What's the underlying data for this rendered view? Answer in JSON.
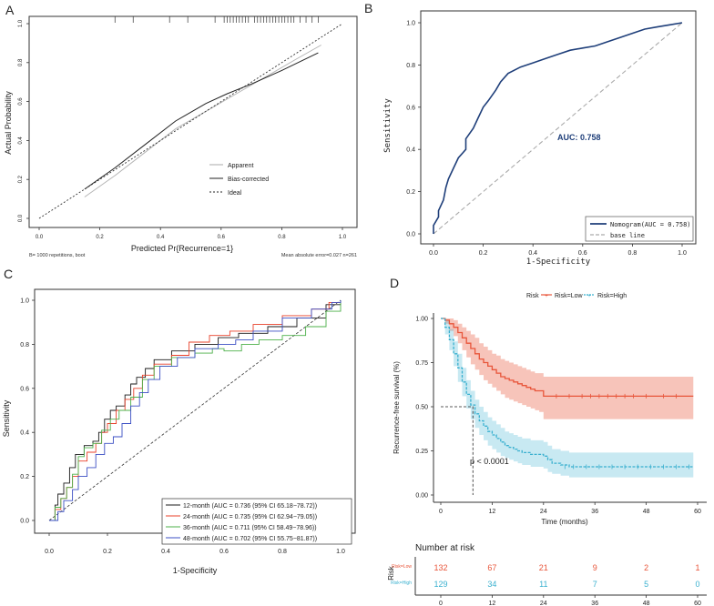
{
  "panels": {
    "a": {
      "letter": "A",
      "chart_data": {
        "type": "line",
        "title": "",
        "xlabel": "Predicted Pr{Recurrence=1}",
        "ylabel": "Actual Probability",
        "xlim": [
          0,
          1
        ],
        "ylim": [
          0,
          1
        ],
        "ticks": [
          "0.0",
          "0.2",
          "0.4",
          "0.6",
          "0.8",
          "1.0"
        ],
        "series": [
          {
            "name": "Apparent",
            "x": [
              0.15,
              0.25,
              0.35,
              0.45,
              0.55,
              0.65,
              0.75,
              0.85,
              0.93
            ],
            "y": [
              0.11,
              0.22,
              0.34,
              0.46,
              0.55,
              0.64,
              0.73,
              0.82,
              0.89
            ]
          },
          {
            "name": "Bias-corrected",
            "x": [
              0.15,
              0.25,
              0.35,
              0.45,
              0.55,
              0.62,
              0.7,
              0.8,
              0.92
            ],
            "y": [
              0.15,
              0.26,
              0.38,
              0.5,
              0.59,
              0.64,
              0.69,
              0.76,
              0.85
            ]
          },
          {
            "name": "Ideal",
            "x": [
              0,
              1
            ],
            "y": [
              0,
              1
            ]
          }
        ],
        "rug": [
          0.25,
          0.31,
          0.43,
          0.49,
          0.58,
          0.61,
          0.62,
          0.63,
          0.64,
          0.65,
          0.66,
          0.67,
          0.68,
          0.69,
          0.71,
          0.72,
          0.73,
          0.74,
          0.75,
          0.76,
          0.77,
          0.78,
          0.79,
          0.8,
          0.81,
          0.82,
          0.83,
          0.84,
          0.86,
          0.88,
          0.9,
          0.92
        ],
        "legend": [
          "Apparent",
          "Bias-corrected",
          "Ideal"
        ],
        "footer_left": "B= 1000 repetitions, boot",
        "footer_right": "Mean absolute error=0.027 n=261"
      }
    },
    "b": {
      "letter": "B",
      "chart_data": {
        "type": "line",
        "title": "",
        "xlabel": "1-Specificity",
        "ylabel": "Sensitivity",
        "xlim": [
          0,
          1
        ],
        "ylim": [
          0,
          1
        ],
        "ticks": [
          "0.0",
          "0.2",
          "0.4",
          "0.6",
          "0.8",
          "1.0"
        ],
        "series": [
          {
            "name": "Nomogram(AUC = 0.758)",
            "x": [
              0,
              0,
              0.02,
              0.02,
              0.04,
              0.05,
              0.06,
              0.08,
              0.1,
              0.13,
              0.13,
              0.16,
              0.18,
              0.2,
              0.22,
              0.25,
              0.27,
              0.3,
              0.35,
              0.4,
              0.45,
              0.5,
              0.55,
              0.6,
              0.65,
              0.7,
              0.75,
              0.8,
              0.85,
              0.9,
              0.95,
              1.0
            ],
            "y": [
              0,
              0.04,
              0.08,
              0.11,
              0.16,
              0.22,
              0.26,
              0.31,
              0.36,
              0.4,
              0.45,
              0.5,
              0.55,
              0.6,
              0.63,
              0.68,
              0.72,
              0.76,
              0.79,
              0.81,
              0.83,
              0.85,
              0.87,
              0.88,
              0.89,
              0.91,
              0.93,
              0.95,
              0.97,
              0.98,
              0.99,
              1.0
            ]
          },
          {
            "name": "base line",
            "x": [
              0,
              1
            ],
            "y": [
              0,
              1
            ]
          }
        ],
        "legend": [
          "Nomogram(AUC = 0.758)",
          "base line"
        ],
        "annotation": "AUC: 0.758"
      }
    },
    "c": {
      "letter": "C",
      "chart_data": {
        "type": "line",
        "title": "",
        "xlabel": "1-Specificity",
        "ylabel": "Sensitivity",
        "xlim": [
          0,
          1
        ],
        "ylim": [
          0,
          1
        ],
        "ticks": [
          "0.0",
          "0.2",
          "0.4",
          "0.6",
          "0.8",
          "1.0"
        ],
        "series": [
          {
            "name": "12-month (AUC = 0.736 (95% CI 65.18−78.72))",
            "color": "#1a1a1a",
            "x": [
              0,
              0.02,
              0.03,
              0.05,
              0.07,
              0.09,
              0.12,
              0.15,
              0.17,
              0.19,
              0.21,
              0.23,
              0.26,
              0.28,
              0.3,
              0.33,
              0.36,
              0.42,
              0.5,
              0.58,
              0.65,
              0.75,
              0.85,
              0.95,
              1.0
            ],
            "y": [
              0,
              0.07,
              0.12,
              0.17,
              0.24,
              0.3,
              0.34,
              0.36,
              0.4,
              0.46,
              0.5,
              0.52,
              0.57,
              0.62,
              0.65,
              0.69,
              0.73,
              0.77,
              0.8,
              0.83,
              0.85,
              0.88,
              0.92,
              0.98,
              1.0
            ]
          },
          {
            "name": "24-month (AUC = 0.735 (95% CI 62.94−79.05))",
            "color": "#e8402a",
            "x": [
              0,
              0.02,
              0.04,
              0.06,
              0.08,
              0.1,
              0.13,
              0.16,
              0.18,
              0.2,
              0.23,
              0.26,
              0.29,
              0.32,
              0.36,
              0.42,
              0.48,
              0.55,
              0.62,
              0.7,
              0.8,
              0.9,
              0.96,
              1.0
            ],
            "y": [
              0,
              0.05,
              0.1,
              0.15,
              0.2,
              0.27,
              0.31,
              0.35,
              0.4,
              0.44,
              0.5,
              0.55,
              0.6,
              0.66,
              0.71,
              0.75,
              0.81,
              0.84,
              0.86,
              0.89,
              0.93,
              0.96,
              0.99,
              1.0
            ]
          },
          {
            "name": "36-month (AUC = 0.711 (95% CI 58.49−78.96))",
            "color": "#4db04a",
            "x": [
              0,
              0.02,
              0.04,
              0.06,
              0.08,
              0.1,
              0.12,
              0.15,
              0.18,
              0.21,
              0.24,
              0.28,
              0.32,
              0.36,
              0.42,
              0.5,
              0.56,
              0.6,
              0.66,
              0.72,
              0.8,
              0.88,
              0.95,
              1.0
            ],
            "y": [
              0,
              0.06,
              0.1,
              0.15,
              0.21,
              0.29,
              0.33,
              0.35,
              0.41,
              0.46,
              0.5,
              0.56,
              0.64,
              0.7,
              0.74,
              0.76,
              0.78,
              0.77,
              0.8,
              0.82,
              0.84,
              0.88,
              0.95,
              1.0
            ]
          },
          {
            "name": "48-month (AUC = 0.702 (95% CI 55.75−81.87))",
            "color": "#3b4fc4",
            "x": [
              0,
              0.03,
              0.05,
              0.08,
              0.1,
              0.13,
              0.16,
              0.19,
              0.22,
              0.25,
              0.28,
              0.31,
              0.34,
              0.38,
              0.44,
              0.5,
              0.58,
              0.64,
              0.7,
              0.8,
              0.9,
              0.97,
              1.0
            ],
            "y": [
              0,
              0.04,
              0.09,
              0.14,
              0.2,
              0.24,
              0.3,
              0.35,
              0.38,
              0.44,
              0.52,
              0.58,
              0.64,
              0.7,
              0.74,
              0.78,
              0.8,
              0.82,
              0.86,
              0.92,
              0.96,
              0.99,
              1.0
            ]
          },
          {
            "name": "reference",
            "color": "#1a1a1a",
            "x": [
              0,
              1
            ],
            "y": [
              0,
              1
            ]
          }
        ],
        "legend": [
          "12-month (AUC = 0.736 (95% CI 65.18−78.72))",
          "24-month (AUC = 0.735 (95% CI 62.94−79.05))",
          "36-month (AUC = 0.711 (95% CI 58.49−78.96))",
          "48-month (AUC = 0.702 (95% CI 55.75−81.87))"
        ]
      }
    },
    "d": {
      "letter": "D",
      "chart_data": {
        "type": "line",
        "title": "",
        "xlabel": "Time (months)",
        "ylabel": "Recurrence-free survival (%)",
        "xlim": [
          0,
          60
        ],
        "ylim": [
          0,
          1
        ],
        "xticks": [
          "0",
          "12",
          "24",
          "36",
          "48",
          "60"
        ],
        "yticks": [
          "0.00",
          "0.25",
          "0.50",
          "0.75",
          "1.00"
        ],
        "legend_title": "Risk",
        "legend": [
          "Risk=Low",
          "Risk=High"
        ],
        "colors": {
          "low": "#e8553a",
          "high": "#39b0cf"
        },
        "series": [
          {
            "name": "Risk=Low",
            "x": [
              0,
              1,
              2,
              3,
              4,
              5,
              6,
              7,
              8,
              9,
              10,
              11,
              12,
              13,
              14,
              15,
              16,
              17,
              18,
              19,
              20,
              21,
              22,
              23,
              24,
              25,
              26,
              30,
              36,
              42,
              48,
              54,
              59
            ],
            "y": [
              1,
              0.99,
              0.97,
              0.95,
              0.92,
              0.89,
              0.86,
              0.83,
              0.8,
              0.77,
              0.75,
              0.73,
              0.71,
              0.69,
              0.67,
              0.66,
              0.65,
              0.64,
              0.63,
              0.62,
              0.61,
              0.6,
              0.59,
              0.59,
              0.56,
              0.56,
              0.56,
              0.56,
              0.56,
              0.56,
              0.56,
              0.56,
              0.56
            ],
            "lower": [
              1,
              0.97,
              0.93,
              0.9,
              0.86,
              0.82,
              0.78,
              0.74,
              0.71,
              0.68,
              0.65,
              0.63,
              0.61,
              0.59,
              0.57,
              0.55,
              0.54,
              0.53,
              0.52,
              0.51,
              0.5,
              0.49,
              0.48,
              0.47,
              0.43,
              0.43,
              0.43,
              0.43,
              0.43,
              0.43,
              0.43,
              0.43,
              0.43
            ],
            "upper": [
              1,
              1,
              1,
              0.99,
              0.97,
              0.95,
              0.93,
              0.91,
              0.89,
              0.86,
              0.84,
              0.82,
              0.8,
              0.79,
              0.77,
              0.76,
              0.75,
              0.74,
              0.73,
              0.72,
              0.71,
              0.7,
              0.69,
              0.69,
              0.67,
              0.67,
              0.67,
              0.67,
              0.67,
              0.67,
              0.67,
              0.67,
              0.67
            ]
          },
          {
            "name": "Risk=High",
            "x": [
              0,
              1,
              2,
              3,
              4,
              5,
              6,
              7,
              8,
              9,
              10,
              11,
              12,
              13,
              14,
              15,
              16,
              17,
              18,
              19,
              20,
              21,
              22,
              23,
              24,
              25,
              26,
              28,
              30,
              36,
              42,
              48,
              54,
              59
            ],
            "y": [
              1,
              0.95,
              0.88,
              0.8,
              0.72,
              0.64,
              0.57,
              0.51,
              0.46,
              0.42,
              0.39,
              0.36,
              0.34,
              0.32,
              0.3,
              0.28,
              0.27,
              0.26,
              0.25,
              0.24,
              0.24,
              0.23,
              0.23,
              0.23,
              0.22,
              0.2,
              0.18,
              0.17,
              0.16,
              0.16,
              0.16,
              0.16,
              0.16,
              0.16
            ],
            "lower": [
              1,
              0.91,
              0.82,
              0.73,
              0.64,
              0.56,
              0.49,
              0.43,
              0.38,
              0.34,
              0.31,
              0.28,
              0.26,
              0.24,
              0.22,
              0.21,
              0.2,
              0.19,
              0.18,
              0.17,
              0.17,
              0.16,
              0.16,
              0.16,
              0.15,
              0.13,
              0.12,
              0.11,
              0.1,
              0.1,
              0.1,
              0.1,
              0.1,
              0.1
            ],
            "upper": [
              1,
              0.99,
              0.94,
              0.87,
              0.8,
              0.72,
              0.65,
              0.59,
              0.54,
              0.5,
              0.47,
              0.44,
              0.42,
              0.4,
              0.38,
              0.36,
              0.35,
              0.34,
              0.33,
              0.32,
              0.32,
              0.31,
              0.31,
              0.31,
              0.3,
              0.28,
              0.26,
              0.25,
              0.24,
              0.24,
              0.24,
              0.24,
              0.24,
              0.24
            ]
          }
        ],
        "median": {
          "x": 7.5,
          "y": 0.5
        },
        "pvalue": "p < 0.0001"
      }
    }
  },
  "risk_table": {
    "title": "Number at risk",
    "axis_label": "Risk",
    "columns": [
      "0",
      "12",
      "24",
      "36",
      "48",
      "60"
    ],
    "rows": [
      {
        "label": "Risk=Low",
        "values": [
          "132",
          "67",
          "21",
          "9",
          "2",
          "1"
        ]
      },
      {
        "label": "Risk=High",
        "values": [
          "129",
          "34",
          "11",
          "7",
          "5",
          "0"
        ]
      }
    ]
  }
}
